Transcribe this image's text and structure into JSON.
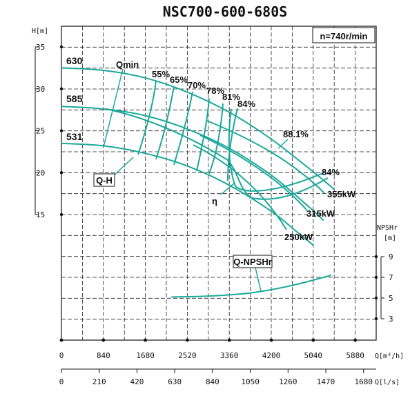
{
  "chart_data": {
    "type": "line",
    "title": "NSC700-600-680S",
    "speed_label": "n=740r/min",
    "axes": {
      "q_m3h": {
        "label": "Q[m³/h]",
        "ticks": [
          0,
          840,
          1680,
          2520,
          3360,
          4200,
          5040,
          5880
        ],
        "range": [
          0,
          6300
        ]
      },
      "q_ls": {
        "label": "Q[l/s]",
        "ticks": [
          0,
          210,
          420,
          630,
          840,
          1050,
          1260,
          1470,
          1680
        ],
        "range": [
          0,
          1750
        ]
      },
      "head": {
        "label": "H[m]",
        "ticks": [
          35,
          30,
          25,
          20,
          15
        ],
        "range": [
          10,
          35
        ]
      },
      "npsh": {
        "label": "NPSHr",
        "unit": "[m]",
        "ticks": [
          9,
          7,
          5,
          3
        ],
        "range": [
          3,
          9
        ]
      }
    },
    "grid": true,
    "impeller_labels": [
      "630",
      "585",
      "531"
    ],
    "curve_labels": {
      "qh": "Q-H",
      "eta": "η",
      "npsh": "Q-NPSHr",
      "qmin": "Qmin"
    },
    "efficiency_labels": [
      "55%",
      "65%",
      "70%",
      "78%",
      "81%",
      "84%",
      "88.1%",
      "84%"
    ],
    "power_labels": [
      "355kW",
      "315kW",
      "250kW"
    ],
    "series": [
      {
        "name": "630",
        "q": [
          0,
          840,
          1680,
          2520,
          3360,
          4200,
          5040,
          5460
        ],
        "h": [
          32.5,
          32.2,
          31.3,
          29.6,
          27.2,
          24.0,
          20.1,
          18.0
        ]
      },
      {
        "name": "585",
        "q": [
          0,
          840,
          1680,
          2520,
          3360,
          4200,
          4900,
          5250
        ],
        "h": [
          27.9,
          27.6,
          26.8,
          25.2,
          22.9,
          19.7,
          16.2,
          14.3
        ]
      },
      {
        "name": "531",
        "q": [
          0,
          840,
          1680,
          2520,
          3360,
          4200,
          4700,
          5050
        ],
        "h": [
          23.5,
          23.2,
          22.3,
          20.8,
          18.5,
          15.4,
          13.0,
          11.3
        ]
      },
      {
        "name": "Q-NPSHr",
        "q": [
          2200,
          3000,
          3800,
          4600,
          5400
        ],
        "npsh": [
          5.1,
          5.2,
          5.5,
          6.2,
          7.2
        ]
      }
    ]
  }
}
